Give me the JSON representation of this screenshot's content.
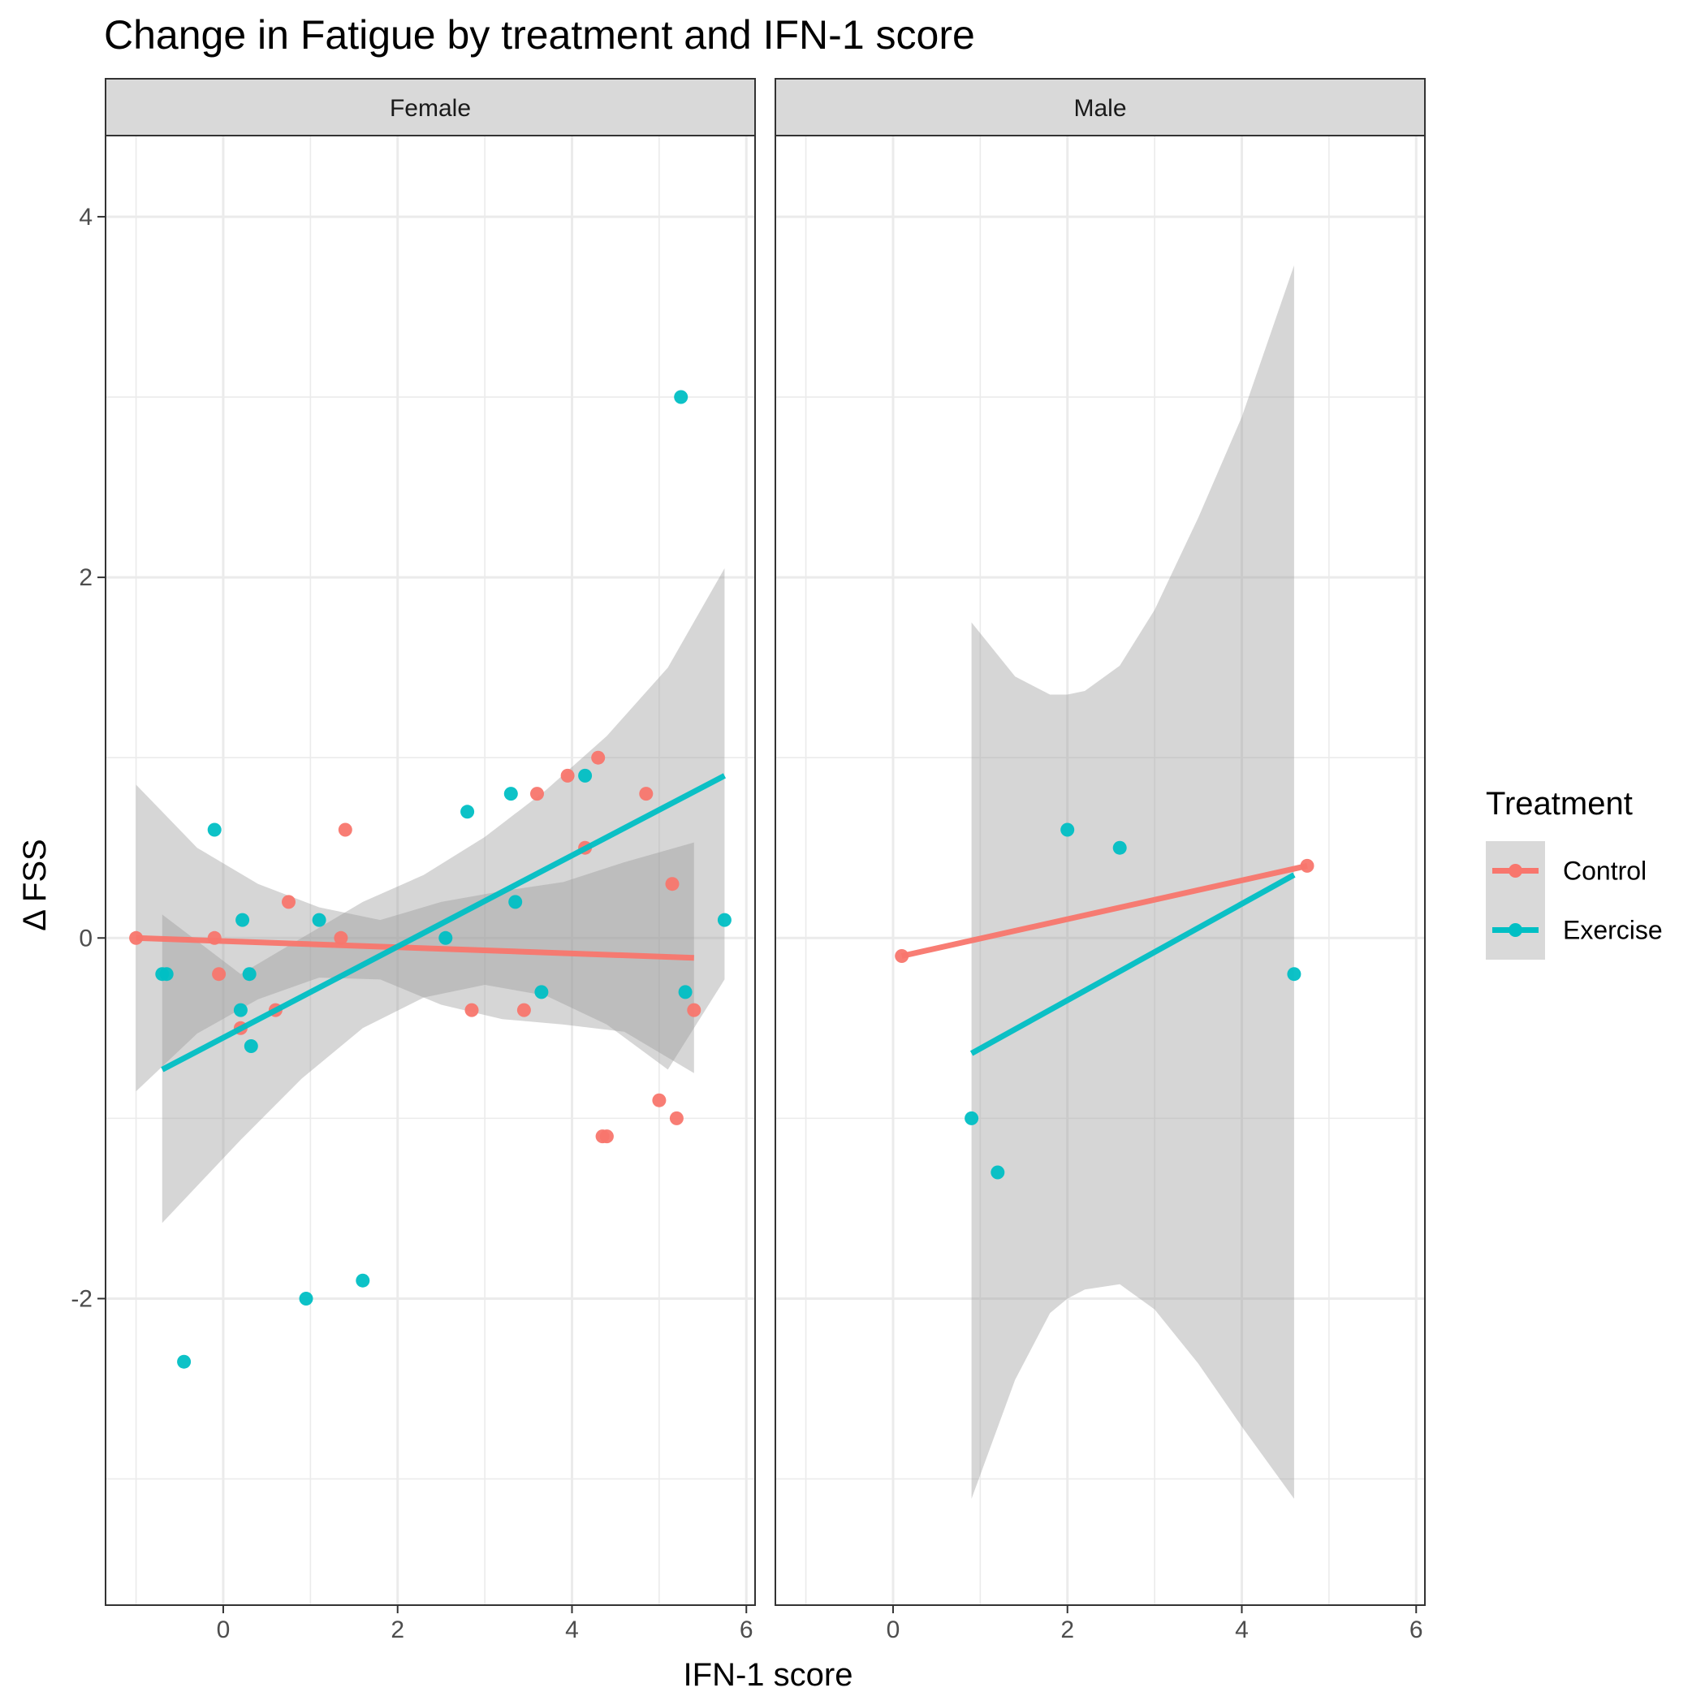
{
  "chart_data": {
    "type": "scatter",
    "title": "Change in Fatigue by treatment and IFN-1 score",
    "xlabel": "IFN-1 score",
    "ylabel": "Δ FSS",
    "xlim": [
      -1.35,
      6.1
    ],
    "ylim": [
      -3.7,
      4.45
    ],
    "x_ticks": [
      0,
      2,
      4,
      6
    ],
    "y_ticks": [
      -2,
      0,
      2,
      4
    ],
    "grid": true,
    "legend": {
      "title": "Treatment",
      "position": "right",
      "entries": [
        {
          "name": "Control",
          "color": "#F8766D"
        },
        {
          "name": "Exercise",
          "color": "#00BFC4"
        }
      ]
    },
    "colors": {
      "Control": "#F8766D",
      "Exercise": "#00BFC4"
    },
    "panels": [
      {
        "label": "Female",
        "series": [
          {
            "name": "Control",
            "points": [
              [
                -1.0,
                0.0
              ],
              [
                -0.1,
                0.0
              ],
              [
                -0.05,
                -0.2
              ],
              [
                0.2,
                -0.5
              ],
              [
                0.6,
                -0.4
              ],
              [
                0.75,
                0.2
              ],
              [
                1.4,
                0.6
              ],
              [
                1.35,
                0.0
              ],
              [
                2.85,
                -0.4
              ],
              [
                3.45,
                -0.4
              ],
              [
                3.6,
                0.8
              ],
              [
                3.95,
                0.9
              ],
              [
                4.15,
                0.5
              ],
              [
                4.3,
                1.0
              ],
              [
                4.35,
                -1.1
              ],
              [
                4.4,
                -1.1
              ],
              [
                4.85,
                0.8
              ],
              [
                5.0,
                -0.9
              ],
              [
                5.15,
                0.3
              ],
              [
                5.2,
                -1.0
              ],
              [
                5.4,
                -0.4
              ]
            ],
            "fit": {
              "x": [
                -1.0,
                5.4
              ],
              "y": [
                0.0,
                -0.11
              ]
            },
            "band": {
              "x": [
                -1.0,
                -0.3,
                0.4,
                1.1,
                1.8,
                2.5,
                3.2,
                3.9,
                4.6,
                5.4
              ],
              "lower": [
                -0.85,
                -0.53,
                -0.34,
                -0.22,
                -0.23,
                -0.37,
                -0.45,
                -0.48,
                -0.52,
                -0.75
              ],
              "upper": [
                0.85,
                0.5,
                0.3,
                0.17,
                0.1,
                0.2,
                0.26,
                0.31,
                0.42,
                0.53
              ]
            }
          },
          {
            "name": "Exercise",
            "points": [
              [
                -0.7,
                -0.2
              ],
              [
                -0.65,
                -0.2
              ],
              [
                -0.45,
                -2.35
              ],
              [
                -0.1,
                0.6
              ],
              [
                0.2,
                -0.4
              ],
              [
                0.22,
                0.1
              ],
              [
                0.3,
                -0.2
              ],
              [
                0.32,
                -0.6
              ],
              [
                0.95,
                -2.0
              ],
              [
                1.1,
                0.1
              ],
              [
                1.6,
                -1.9
              ],
              [
                2.55,
                0.0
              ],
              [
                2.8,
                0.7
              ],
              [
                3.3,
                0.8
              ],
              [
                3.35,
                0.2
              ],
              [
                3.65,
                -0.3
              ],
              [
                4.15,
                0.9
              ],
              [
                5.25,
                3.0
              ],
              [
                5.3,
                -0.3
              ],
              [
                5.75,
                0.1
              ]
            ],
            "fit": {
              "x": [
                -0.7,
                5.75
              ],
              "y": [
                -0.73,
                0.9
              ]
            },
            "band": {
              "x": [
                -0.7,
                0.2,
                0.9,
                1.6,
                2.3,
                3.0,
                3.7,
                4.4,
                5.1,
                5.75
              ],
              "lower": [
                -1.58,
                -1.12,
                -0.78,
                -0.5,
                -0.33,
                -0.26,
                -0.32,
                -0.48,
                -0.73,
                -0.23
              ],
              "upper": [
                0.13,
                -0.2,
                0.0,
                0.2,
                0.35,
                0.56,
                0.82,
                1.12,
                1.5,
                2.05
              ]
            }
          }
        ]
      },
      {
        "label": "Male",
        "series": [
          {
            "name": "Control",
            "points": [
              [
                0.1,
                -0.1
              ],
              [
                4.75,
                0.4
              ]
            ],
            "fit": {
              "x": [
                0.1,
                4.75
              ],
              "y": [
                -0.1,
                0.4
              ]
            },
            "band": null
          },
          {
            "name": "Exercise",
            "points": [
              [
                0.9,
                -1.0
              ],
              [
                1.2,
                -1.3
              ],
              [
                2.0,
                0.6
              ],
              [
                2.6,
                0.5
              ],
              [
                4.6,
                -0.2
              ]
            ],
            "fit": {
              "x": [
                0.9,
                4.6
              ],
              "y": [
                -0.64,
                0.35
              ]
            },
            "band": {
              "x": [
                0.9,
                1.4,
                1.8,
                2.0,
                2.2,
                2.6,
                3.0,
                3.5,
                4.0,
                4.6
              ],
              "lower": [
                -3.11,
                -2.45,
                -2.08,
                -2.0,
                -1.95,
                -1.92,
                -2.06,
                -2.36,
                -2.71,
                -3.11
              ],
              "upper": [
                1.75,
                1.45,
                1.35,
                1.35,
                1.37,
                1.51,
                1.82,
                2.33,
                2.89,
                3.73
              ]
            }
          }
        ]
      }
    ]
  }
}
